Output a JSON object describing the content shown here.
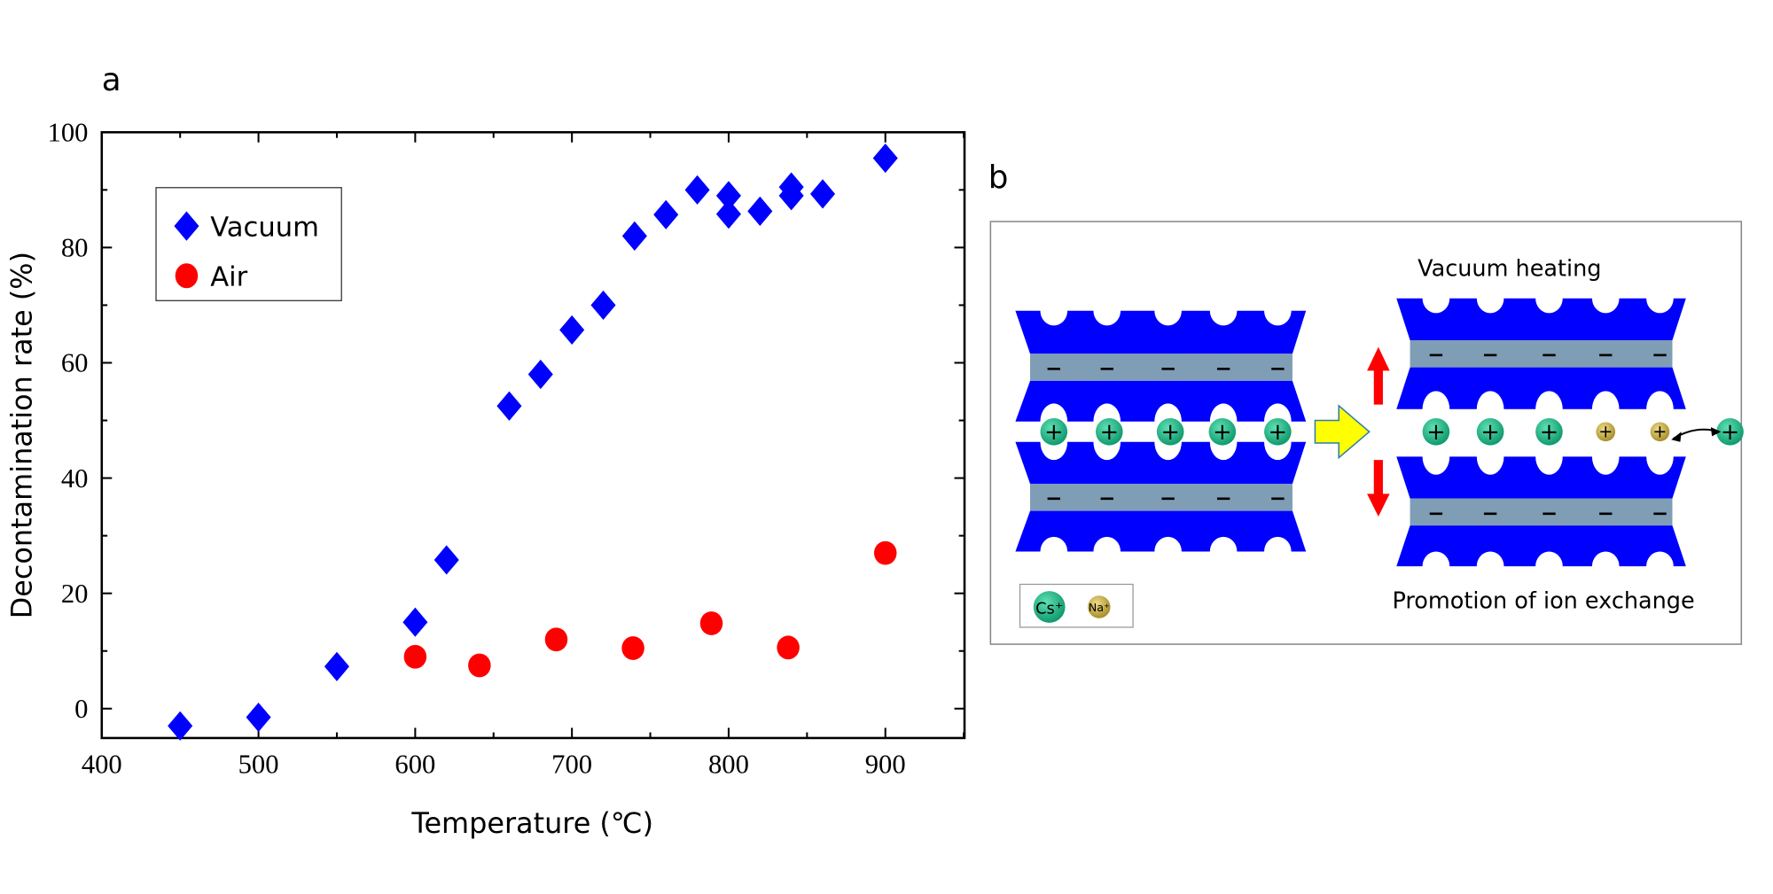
{
  "panel_a_label": "a",
  "panel_b_label": "b",
  "chart_data": {
    "type": "scatter",
    "xlabel": "Temperature (℃)",
    "ylabel": "Decontamination rate (%)",
    "xlim": [
      400,
      950
    ],
    "ylim": [
      -5,
      100
    ],
    "xticks": [
      400,
      500,
      600,
      700,
      800,
      900
    ],
    "yticks": [
      0,
      20,
      40,
      60,
      80,
      100
    ],
    "grid": false,
    "legend_position": "top-left",
    "series": [
      {
        "name": "Vacuum",
        "marker": "diamond",
        "color": "#0000ff",
        "x": [
          450,
          500,
          550,
          600,
          620,
          660,
          680,
          700,
          720,
          740,
          760,
          780,
          800,
          800,
          820,
          840,
          840,
          860,
          900
        ],
        "y": [
          -3,
          -1.5,
          7.3,
          15,
          25.8,
          52.5,
          58,
          65.7,
          70,
          82,
          85.7,
          90,
          89,
          85.8,
          86.3,
          90.5,
          89,
          89.3,
          95.5
        ]
      },
      {
        "name": "Air",
        "marker": "circle",
        "color": "#ff0000",
        "x": [
          600,
          641,
          690,
          739,
          789,
          838,
          900
        ],
        "y": [
          9,
          7.5,
          12,
          10.5,
          14.8,
          10.6,
          27
        ]
      }
    ]
  },
  "diagram": {
    "title_top": "Vacuum heating",
    "title_bottom": "Promotion of ion exchange",
    "layer_color": "#0000ff",
    "interlayer_color": "#7f9db5",
    "cs_color": "#1db98a",
    "na_color": "#c9b24a",
    "arrow_color": "#ff0000",
    "transition_arrow_color": "#ffff00",
    "cation_symbol": "+",
    "anion_symbol": "−",
    "legend": {
      "cs": "Cs⁺",
      "na": "Na⁺"
    }
  }
}
